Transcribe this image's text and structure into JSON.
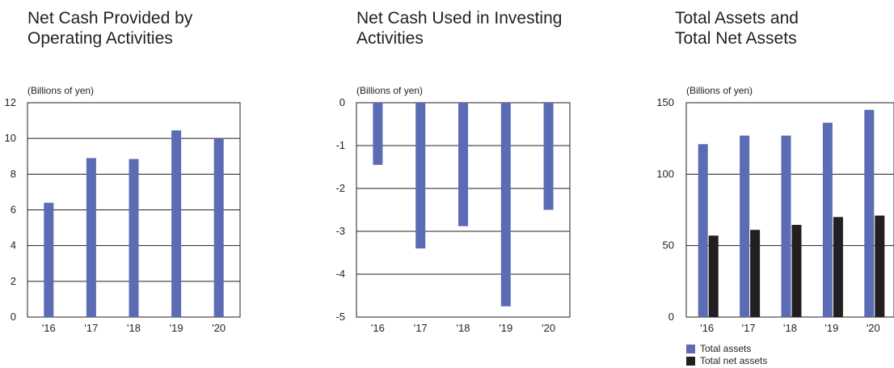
{
  "colors": {
    "blue": "#5b6cb5",
    "dark": "#231f20",
    "frame": "#231f20"
  },
  "chart_data": [
    {
      "type": "bar",
      "title": "Net Cash Provided by\nOperating Activities",
      "unit_label": "(Billions of yen)",
      "categories": [
        "'16",
        "'17",
        "'18",
        "'19",
        "'20"
      ],
      "yticks": [
        0,
        2,
        4,
        6,
        8,
        10,
        12
      ],
      "ylim": [
        0,
        12
      ],
      "grid": true,
      "series": [
        {
          "values": [
            6.4,
            8.9,
            8.85,
            10.45,
            10.0
          ],
          "color": "#5b6cb5"
        }
      ]
    },
    {
      "type": "bar",
      "title": "Net Cash Used in Investing\nActivities",
      "unit_label": "(Billions of yen)",
      "categories": [
        "'16",
        "'17",
        "'18",
        "'19",
        "'20"
      ],
      "yticks": [
        0,
        -1,
        -2,
        -3,
        -4,
        -5
      ],
      "ylim": [
        -5,
        0
      ],
      "grid": true,
      "series": [
        {
          "values": [
            -1.45,
            -3.4,
            -2.88,
            -4.75,
            -2.5
          ],
          "color": "#5b6cb5"
        }
      ]
    },
    {
      "type": "bar",
      "title": "Total Assets and\nTotal Net Assets",
      "unit_label": "(Billions of yen)",
      "categories": [
        "'16",
        "'17",
        "'18",
        "'19",
        "'20"
      ],
      "yticks": [
        0,
        50,
        100,
        150
      ],
      "ylim": [
        0,
        150
      ],
      "grid": true,
      "legend_position": "bottom-left",
      "series": [
        {
          "name": "Total assets",
          "values": [
            121,
            127,
            127,
            136,
            145
          ],
          "color": "#5b6cb5"
        },
        {
          "name": "Total net assets",
          "values": [
            57,
            61,
            64.5,
            70,
            71
          ],
          "color": "#231f20"
        }
      ]
    }
  ]
}
